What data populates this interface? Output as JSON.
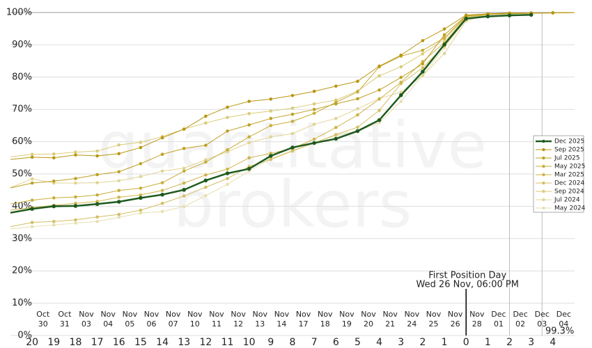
{
  "chart_data": {
    "type": "line",
    "watermark": [
      "quantitative",
      "brokers"
    ],
    "x": [
      -21,
      -20,
      -19,
      -18,
      -17,
      -16,
      -15,
      -14,
      -13,
      -12,
      -11,
      -10,
      -9,
      -8,
      -7,
      -6,
      -5,
      -4,
      -3,
      -2,
      -1,
      0,
      1,
      2,
      3,
      4,
      5
    ],
    "xlim": [
      -21,
      5
    ],
    "xticks": [
      {
        "value": -20,
        "label": "20"
      },
      {
        "value": -19,
        "label": "19"
      },
      {
        "value": -18,
        "label": "18"
      },
      {
        "value": -17,
        "label": "17"
      },
      {
        "value": -16,
        "label": "16"
      },
      {
        "value": -15,
        "label": "15"
      },
      {
        "value": -14,
        "label": "14"
      },
      {
        "value": -13,
        "label": "13"
      },
      {
        "value": -12,
        "label": "12"
      },
      {
        "value": -11,
        "label": "11"
      },
      {
        "value": -10,
        "label": "10"
      },
      {
        "value": -9,
        "label": "9"
      },
      {
        "value": -8,
        "label": "8"
      },
      {
        "value": -7,
        "label": "7"
      },
      {
        "value": -6,
        "label": "6"
      },
      {
        "value": -5,
        "label": "5"
      },
      {
        "value": -4,
        "label": "4"
      },
      {
        "value": -3,
        "label": "3"
      },
      {
        "value": -2,
        "label": "2"
      },
      {
        "value": -1,
        "label": "1"
      },
      0,
      1,
      2,
      3,
      4
    ],
    "xtick_dates": [
      "Oct 30",
      "Oct 31",
      "Nov 03",
      "Nov 04",
      "Nov 05",
      "Nov 06",
      "Nov 07",
      "Nov 10",
      "Nov 11",
      "Nov 12",
      "Nov 13",
      "Nov 14",
      "Nov 17",
      "Nov 18",
      "Nov 19",
      "Nov 20",
      "Nov 21",
      "Nov 24",
      "Nov 25",
      "Nov 26",
      "Nov 28",
      "Dec 01",
      "Dec 02",
      "Dec 03",
      "Dec 04"
    ],
    "ylim": [
      0,
      100
    ],
    "yticks": [
      {
        "value": 0,
        "label": "0%"
      },
      {
        "value": 10,
        "label": "10%"
      },
      {
        "value": 20,
        "label": "20%"
      },
      {
        "value": 30,
        "label": "30%"
      },
      {
        "value": 40,
        "label": "40%"
      },
      {
        "value": 50,
        "label": "50%"
      },
      {
        "value": 60,
        "label": "60%"
      },
      {
        "value": 70,
        "label": "70%"
      },
      {
        "value": 80,
        "label": "80%"
      },
      {
        "value": 90,
        "label": "90%"
      },
      {
        "value": 100,
        "label": "100%"
      }
    ],
    "grid": true,
    "vlines": [
      2,
      3.5
    ],
    "annotation": {
      "x": 0,
      "lines": [
        "First Position Day",
        "Wed 26 Nov, 06:00 PM"
      ]
    },
    "end_label": "99.3%",
    "legend": "right",
    "series": [
      {
        "name": "Dec 2025",
        "color": "#1e5a1e",
        "values": [
          38,
          39.2,
          40,
          40.1,
          40.7,
          41.4,
          42.6,
          43.6,
          45.1,
          48,
          50.2,
          51.6,
          55.6,
          58.2,
          59.6,
          60.9,
          63.3,
          66.7,
          74.4,
          81.7,
          90.1,
          98.1,
          98.8,
          99.1,
          99.3,
          null,
          null
        ]
      },
      {
        "name": "Sep 2025",
        "color": "#b8960f",
        "values": [
          54.5,
          55.2,
          55,
          55.9,
          55.6,
          56.3,
          58.2,
          61.2,
          63.9,
          67.9,
          70.7,
          72.5,
          73.2,
          74.3,
          75.6,
          77.2,
          78.7,
          83.4,
          86.8,
          91.3,
          94.9,
          99.2,
          99.6,
          99.8,
          99.8,
          99.9,
          100
        ]
      },
      {
        "name": "Jul 2025",
        "color": "#bfa020",
        "values": [
          45.7,
          47.2,
          47.8,
          48.6,
          49.8,
          50.7,
          53.2,
          56.1,
          57.9,
          58.9,
          63.3,
          65.2,
          67.2,
          68.5,
          70,
          71.7,
          73.3,
          76,
          79.9,
          84.1,
          93.1,
          99,
          99.6,
          99.8,
          99.9,
          99.9,
          100
        ]
      },
      {
        "name": "May 2025",
        "color": "#c8ad3a",
        "values": [
          40.7,
          41.9,
          42.6,
          42.9,
          43.5,
          44.9,
          45.6,
          47.3,
          50.9,
          53.7,
          57.5,
          61.5,
          65,
          66.3,
          68.8,
          72.2,
          75.4,
          83.2,
          86.5,
          88.3,
          92.1,
          98.9,
          99.5,
          99.7,
          99.8,
          99.9,
          100
        ]
      },
      {
        "name": "Mar 2025",
        "color": "#cdb44a",
        "values": [
          38.8,
          39.6,
          40.3,
          40.9,
          41.5,
          42.8,
          43.5,
          44.9,
          47.2,
          49.7,
          51.5,
          55,
          56.4,
          57.9,
          60.8,
          64.4,
          68.3,
          73.2,
          78.4,
          84.8,
          90.7,
          98.5,
          99.4,
          99.6,
          99.8,
          99.9,
          100
        ]
      },
      {
        "name": "Dec 2024",
        "color": "#d4bf63",
        "values": [
          33.7,
          35,
          35.3,
          35.8,
          36.7,
          37.5,
          38.8,
          40.9,
          43.2,
          45.9,
          48.6,
          52.3,
          54.5,
          57.1,
          59.6,
          62.2,
          64.5,
          69.7,
          78,
          82.9,
          89.7,
          98,
          99.4,
          99.6,
          99.8,
          99.9,
          100
        ]
      },
      {
        "name": "Sep 2024",
        "color": "#dacb7a",
        "values": [
          55.3,
          56.1,
          56.2,
          56.8,
          57.1,
          59,
          59.8,
          61.6,
          63.9,
          65.8,
          67.5,
          68.7,
          69.5,
          70.4,
          71.7,
          72.9,
          75.7,
          80.4,
          83.2,
          87.2,
          91.7,
          98.7,
          99.5,
          99.7,
          99.8,
          99.9,
          100
        ]
      },
      {
        "name": "Jul 2024",
        "color": "#e0d495",
        "values": [
          45.8,
          48.5,
          47.2,
          47.2,
          47.3,
          47.9,
          49.2,
          50.9,
          51.8,
          54.4,
          56.9,
          59.7,
          61.5,
          62.5,
          65.4,
          67.2,
          70.2,
          73.4,
          75.3,
          80.5,
          87.3,
          97.4,
          99.3,
          99.6,
          99.8,
          99.9,
          100
        ]
      },
      {
        "name": "May 2024",
        "color": "#e8dfb0",
        "values": [
          33,
          33.7,
          34.2,
          34.8,
          35.3,
          36.6,
          37.9,
          38.4,
          39.9,
          43.3,
          46.8,
          50.9,
          54.8,
          57.3,
          59.6,
          61.9,
          63.3,
          65.9,
          72.5,
          80.6,
          89.1,
          97.9,
          99.3,
          99.6,
          99.8,
          99.9,
          100
        ]
      }
    ]
  }
}
